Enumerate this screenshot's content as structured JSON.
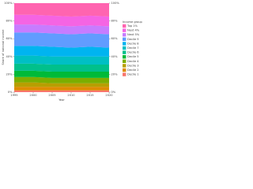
{
  "chart_data": {
    "type": "area",
    "x_label": "Year",
    "y_label": "Share of national income",
    "legend_title": "Income group",
    "x": [
      1995,
      2000,
      2005,
      2010,
      2015,
      2020
    ],
    "xlim": [
      1995,
      2020
    ],
    "xticks": [
      1995,
      2000,
      2005,
      2010,
      2015,
      2020
    ],
    "ylim": [
      0,
      100
    ],
    "yticks": [
      {
        "value": 0,
        "label": "0%"
      },
      {
        "value": 20,
        "label": "20%"
      },
      {
        "value": 40,
        "label": "40%"
      },
      {
        "value": 60,
        "label": "60%"
      },
      {
        "value": 80,
        "label": "80%"
      },
      {
        "value": 100,
        "label": "100%"
      }
    ],
    "stacked": true,
    "series": [
      {
        "name": "Top 1%",
        "color": "#FF64B0",
        "values": [
          13,
          13,
          14,
          15,
          14,
          15
        ]
      },
      {
        "name": "Next 4%",
        "color": "#F564E3",
        "values": [
          11,
          11,
          11,
          11,
          11,
          11
        ]
      },
      {
        "name": "Next 5%",
        "color": "#C77CFF",
        "values": [
          9,
          9,
          9,
          9,
          9,
          9
        ]
      },
      {
        "name": "Decile 9",
        "color": "#619CFF",
        "values": [
          15,
          15,
          15,
          15,
          15,
          15
        ]
      },
      {
        "name": "Decile 8",
        "color": "#00B4F0",
        "values": [
          11,
          11,
          11,
          10,
          11,
          10
        ]
      },
      {
        "name": "Decile 7",
        "color": "#00BFC4",
        "values": [
          9,
          9,
          9,
          9,
          9,
          9
        ]
      },
      {
        "name": "Decile 6",
        "color": "#00C08B",
        "values": [
          8,
          8,
          8,
          8,
          8,
          8
        ]
      },
      {
        "name": "Decile 5",
        "color": "#00BA38",
        "values": [
          7,
          7,
          7,
          7,
          7,
          7
        ]
      },
      {
        "name": "Decile 4",
        "color": "#7CAE00",
        "values": [
          6,
          6,
          6,
          6,
          6,
          6
        ]
      },
      {
        "name": "Decile 3",
        "color": "#B79F00",
        "values": [
          5,
          5,
          4,
          4,
          4,
          4
        ]
      },
      {
        "name": "Decile 2",
        "color": "#DE8C00",
        "values": [
          4,
          4,
          4,
          4,
          4,
          4
        ]
      },
      {
        "name": "Decile 1",
        "color": "#F8766D",
        "values": [
          2,
          2,
          2,
          2,
          2,
          2
        ]
      }
    ]
  }
}
